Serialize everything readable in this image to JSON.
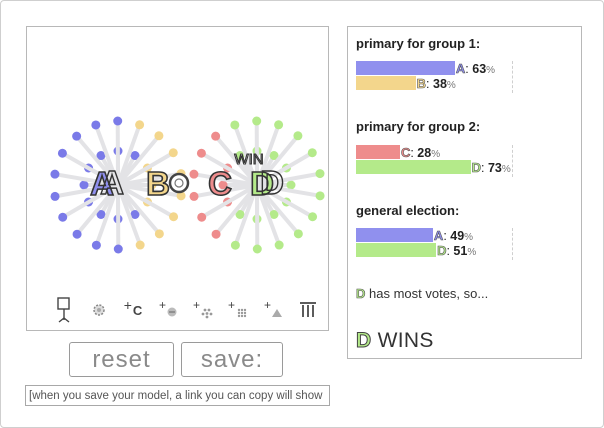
{
  "candidates": {
    "A": {
      "letter": "A",
      "color": "#9090ee"
    },
    "B": {
      "letter": "B",
      "color": "#f3d68c"
    },
    "C": {
      "letter": "C",
      "color": "#ee8c8c"
    },
    "D": {
      "letter": "D",
      "color": "#b4ea8a"
    }
  },
  "canvas": {
    "win_label": "WIN",
    "toolbar": [
      {
        "name": "drop-voter-icon",
        "glyph": "⚲"
      },
      {
        "name": "gear-icon",
        "glyph": "⚙"
      },
      {
        "name": "add-candidate-icon",
        "glyph": "+c"
      },
      {
        "name": "add-voter-icon",
        "glyph": "+●"
      },
      {
        "name": "add-voter-group-icon",
        "glyph": "+⁘"
      },
      {
        "name": "add-voter-crowd-icon",
        "glyph": "+⁙"
      },
      {
        "name": "add-triangle-icon",
        "glyph": "+▲"
      },
      {
        "name": "pillars-icon",
        "glyph": "Ⅲ"
      }
    ]
  },
  "controls": {
    "reset_label": "reset",
    "save_label": "save:",
    "save_placeholder": "[when you save your model, a link you can copy will show up here]"
  },
  "results": {
    "primary_1": {
      "title": "primary for group 1:",
      "rows": [
        {
          "candidate": "A",
          "value": 63,
          "pct_sign": "%"
        },
        {
          "candidate": "B",
          "value": 38,
          "pct_sign": "%"
        }
      ]
    },
    "primary_2": {
      "title": "primary for group 2:",
      "rows": [
        {
          "candidate": "C",
          "value": 28,
          "pct_sign": "%"
        },
        {
          "candidate": "D",
          "value": 73,
          "pct_sign": "%"
        }
      ]
    },
    "general": {
      "title": "general election:",
      "rows": [
        {
          "candidate": "A",
          "value": 49,
          "pct_sign": "%"
        },
        {
          "candidate": "D",
          "value": 51,
          "pct_sign": "%"
        }
      ]
    },
    "status": {
      "candidate": "D",
      "text": " has most votes, so..."
    },
    "winner": {
      "candidate": "D",
      "text": " WINS"
    }
  }
}
